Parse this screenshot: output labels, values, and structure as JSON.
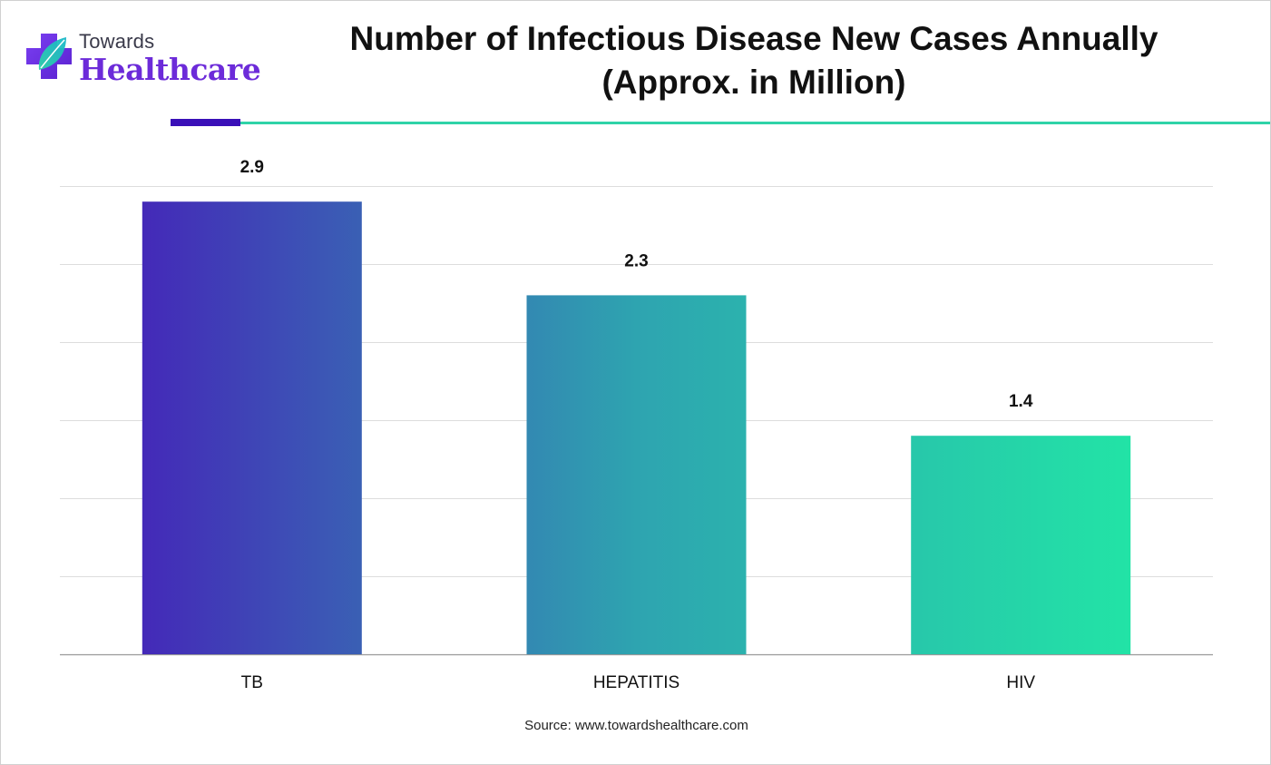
{
  "logo": {
    "small_text": "Towards",
    "big_text": "Healthcare"
  },
  "title_lines": [
    "Number of Infectious Disease New Cases Annually",
    "(Approx. in Million)"
  ],
  "source": "Source: www.towardshealthcare.com",
  "colors": {
    "brand_purple": "#6c2bd9",
    "rule_dark": "#3a10b8",
    "rule_teal": "#2fd3a8",
    "gradient_start": "#4428b8",
    "gradient_end": "#22e4a6"
  },
  "chart_data": {
    "type": "bar",
    "title": "Number of Infectious Disease New Cases Annually (Approx. in Million)",
    "xlabel": "",
    "ylabel": "",
    "categories": [
      "TB",
      "HEPATITIS",
      "HIV"
    ],
    "values": [
      2.9,
      2.3,
      1.4
    ],
    "value_labels": [
      "2.9",
      "2.3",
      "1.4"
    ],
    "ylim": [
      0,
      3.0
    ],
    "grid": true,
    "legend": "none"
  }
}
